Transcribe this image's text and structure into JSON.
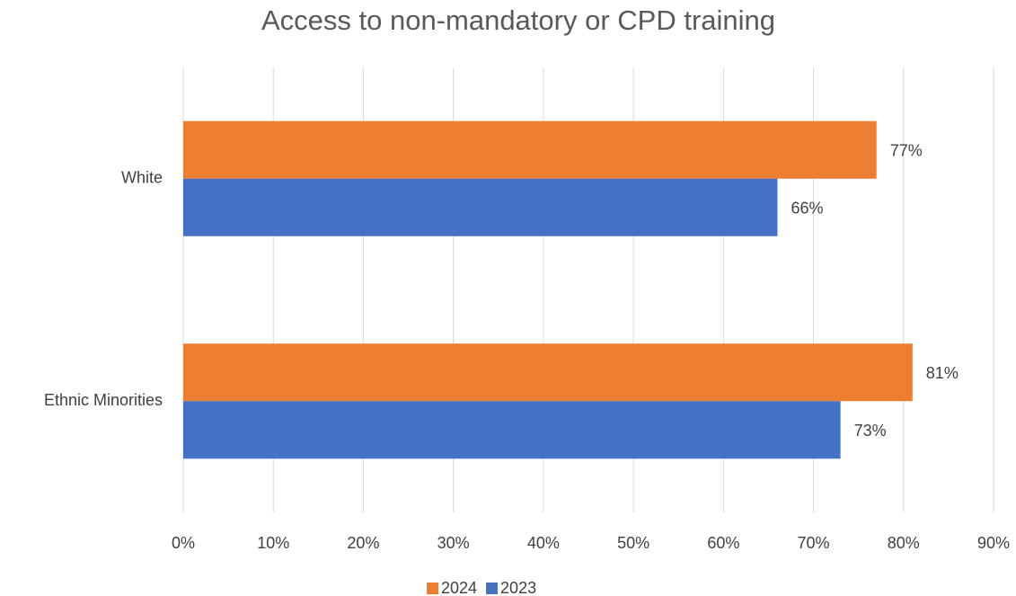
{
  "chart_data": {
    "type": "hbar",
    "title": "Access to non-mandatory or CPD training",
    "categories": [
      "White",
      "Ethnic Minorities"
    ],
    "series": [
      {
        "name": "2024",
        "color": "#ed7d31",
        "values": [
          77,
          81
        ],
        "value_labels": [
          "77%",
          "81%"
        ]
      },
      {
        "name": "2023",
        "color": "#4472c4",
        "values": [
          66,
          73
        ],
        "value_labels": [
          "66%",
          "73%"
        ]
      }
    ],
    "xlim": [
      0,
      90
    ],
    "xticks": [
      {
        "value": 0,
        "label": "0%"
      },
      {
        "value": 10,
        "label": "10%"
      },
      {
        "value": 20,
        "label": "20%"
      },
      {
        "value": 30,
        "label": "30%"
      },
      {
        "value": 40,
        "label": "40%"
      },
      {
        "value": 50,
        "label": "50%"
      },
      {
        "value": 60,
        "label": "60%"
      },
      {
        "value": 70,
        "label": "70%"
      },
      {
        "value": 80,
        "label": "80%"
      },
      {
        "value": 90,
        "label": "90%"
      }
    ],
    "grid": true,
    "legend": "bottom"
  }
}
